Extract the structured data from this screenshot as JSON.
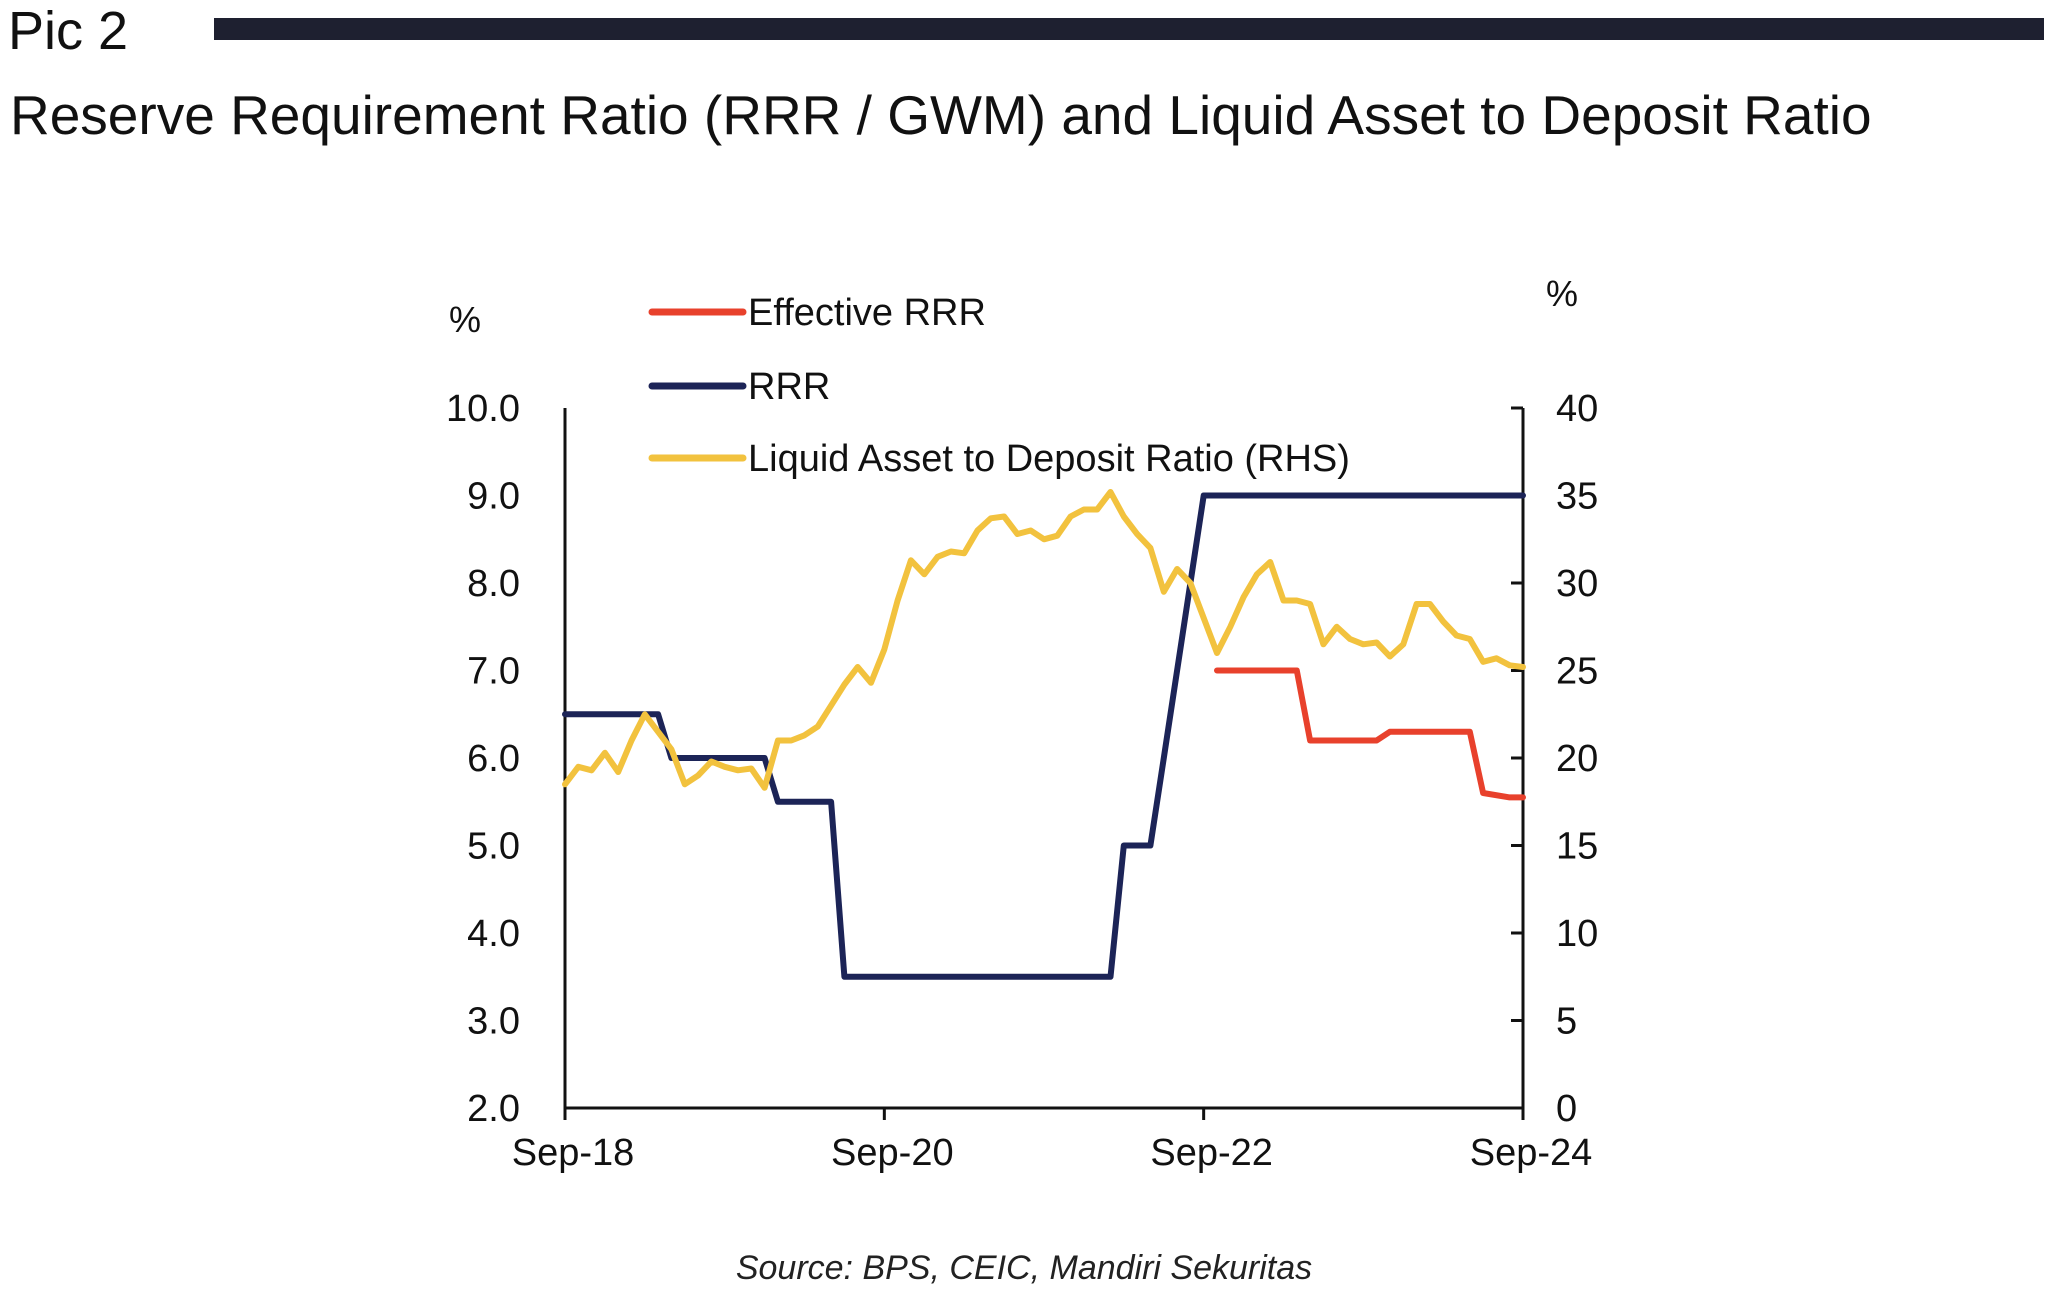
{
  "header": {
    "pic_label": "Pic 2",
    "title": "Reserve Requirement Ratio (RRR / GWM) and Liquid Asset to Deposit Ratio"
  },
  "source": "Source: BPS, CEIC, Mandiri Sekuritas",
  "colors": {
    "header_bar": "#1e2030",
    "effective_rrr": "#e8412c",
    "rrr": "#1c2457",
    "ladr": "#f2c23e"
  },
  "chart_data": {
    "type": "line",
    "left_unit": "%",
    "right_unit": "%",
    "y_left": {
      "range": [
        2.0,
        10.0
      ],
      "ticks": [
        "10.0",
        "9.0",
        "8.0",
        "7.0",
        "6.0",
        "5.0",
        "4.0",
        "3.0",
        "2.0"
      ]
    },
    "y_right": {
      "range": [
        0,
        40
      ],
      "ticks": [
        "40",
        "35",
        "30",
        "25",
        "20",
        "15",
        "10",
        "5",
        "0"
      ]
    },
    "x_axis": {
      "start": "2018-09",
      "end": "2024-09",
      "ticks": [
        "Sep-18",
        "Sep-20",
        "Sep-22",
        "Sep-24"
      ]
    },
    "grid": false,
    "legend": "top-left",
    "series": [
      {
        "name": "Effective RRR",
        "axis": "left",
        "color": "#e8412c",
        "points": [
          [
            "2022-10",
            7.0
          ],
          [
            "2023-02",
            7.0
          ],
          [
            "2023-04",
            7.0
          ],
          [
            "2023-05",
            6.2
          ],
          [
            "2023-10",
            6.2
          ],
          [
            "2023-11",
            6.3
          ],
          [
            "2024-05",
            6.3
          ],
          [
            "2024-06",
            5.6
          ],
          [
            "2024-08",
            5.55
          ],
          [
            "2024-09",
            5.55
          ]
        ]
      },
      {
        "name": "RRR",
        "axis": "left",
        "color": "#1c2457",
        "points": [
          [
            "2018-09",
            6.5
          ],
          [
            "2019-04",
            6.5
          ],
          [
            "2019-05",
            6.0
          ],
          [
            "2019-12",
            6.0
          ],
          [
            "2020-01",
            5.5
          ],
          [
            "2020-05",
            5.5
          ],
          [
            "2020-06",
            3.5
          ],
          [
            "2022-02",
            3.5
          ],
          [
            "2022-03",
            5.0
          ],
          [
            "2022-05",
            5.0
          ],
          [
            "2022-06",
            6.0
          ],
          [
            "2022-07",
            7.0
          ],
          [
            "2022-08",
            8.0
          ],
          [
            "2022-09",
            9.0
          ],
          [
            "2024-09",
            9.0
          ]
        ]
      },
      {
        "name": "Liquid Asset to Deposit Ratio (RHS)",
        "axis": "right",
        "color": "#f2c23e",
        "points": [
          [
            "2018-09",
            18.5
          ],
          [
            "2018-10",
            19.5
          ],
          [
            "2018-11",
            19.3
          ],
          [
            "2018-12",
            20.3
          ],
          [
            "2019-01",
            19.2
          ],
          [
            "2019-02",
            21.0
          ],
          [
            "2019-03",
            22.5
          ],
          [
            "2019-04",
            21.5
          ],
          [
            "2019-05",
            20.5
          ],
          [
            "2019-06",
            18.5
          ],
          [
            "2019-07",
            19.0
          ],
          [
            "2019-08",
            19.8
          ],
          [
            "2019-09",
            19.5
          ],
          [
            "2019-10",
            19.3
          ],
          [
            "2019-11",
            19.4
          ],
          [
            "2019-12",
            18.3
          ],
          [
            "2020-01",
            21.0
          ],
          [
            "2020-02",
            21.0
          ],
          [
            "2020-03",
            21.3
          ],
          [
            "2020-04",
            21.8
          ],
          [
            "2020-05",
            23.0
          ],
          [
            "2020-06",
            24.2
          ],
          [
            "2020-07",
            25.2
          ],
          [
            "2020-08",
            24.3
          ],
          [
            "2020-09",
            26.2
          ],
          [
            "2020-10",
            29.0
          ],
          [
            "2020-11",
            31.3
          ],
          [
            "2020-12",
            30.5
          ],
          [
            "2021-01",
            31.5
          ],
          [
            "2021-02",
            31.8
          ],
          [
            "2021-03",
            31.7
          ],
          [
            "2021-04",
            33.0
          ],
          [
            "2021-05",
            33.7
          ],
          [
            "2021-06",
            33.8
          ],
          [
            "2021-07",
            32.8
          ],
          [
            "2021-08",
            33.0
          ],
          [
            "2021-09",
            32.5
          ],
          [
            "2021-10",
            32.7
          ],
          [
            "2021-11",
            33.8
          ],
          [
            "2021-12",
            34.2
          ],
          [
            "2022-01",
            34.2
          ],
          [
            "2022-02",
            35.2
          ],
          [
            "2022-03",
            33.8
          ],
          [
            "2022-04",
            32.8
          ],
          [
            "2022-05",
            32.0
          ],
          [
            "2022-06",
            29.5
          ],
          [
            "2022-07",
            30.8
          ],
          [
            "2022-08",
            30.0
          ],
          [
            "2022-09",
            28.0
          ],
          [
            "2022-10",
            26.0
          ],
          [
            "2022-11",
            27.5
          ],
          [
            "2022-12",
            29.2
          ],
          [
            "2023-01",
            30.5
          ],
          [
            "2023-02",
            31.2
          ],
          [
            "2023-03",
            29.0
          ],
          [
            "2023-04",
            29.0
          ],
          [
            "2023-05",
            28.8
          ],
          [
            "2023-06",
            26.5
          ],
          [
            "2023-07",
            27.5
          ],
          [
            "2023-08",
            26.8
          ],
          [
            "2023-09",
            26.5
          ],
          [
            "2023-10",
            26.6
          ],
          [
            "2023-11",
            25.8
          ],
          [
            "2023-12",
            26.5
          ],
          [
            "2024-01",
            28.8
          ],
          [
            "2024-02",
            28.8
          ],
          [
            "2024-03",
            27.8
          ],
          [
            "2024-04",
            27.0
          ],
          [
            "2024-05",
            26.8
          ],
          [
            "2024-06",
            25.5
          ],
          [
            "2024-07",
            25.7
          ],
          [
            "2024-08",
            25.3
          ],
          [
            "2024-09",
            25.2
          ]
        ]
      }
    ]
  }
}
